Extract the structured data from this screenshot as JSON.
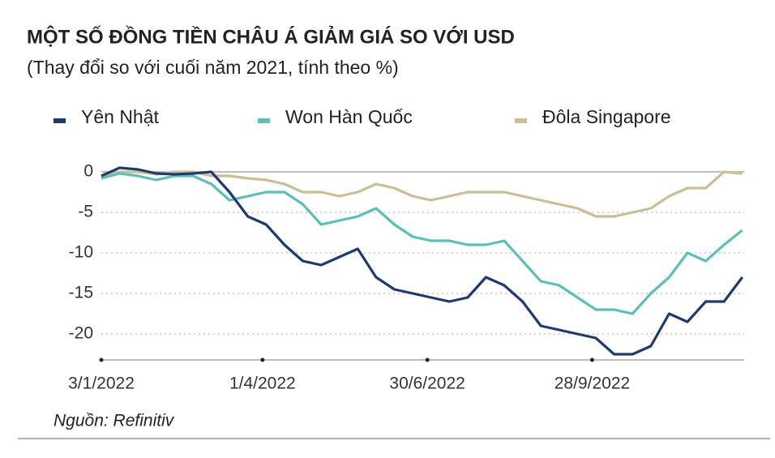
{
  "chart_data": {
    "type": "line",
    "title": "MỘT SỐ ĐỒNG TIỀN CHÂU Á GIẢM GIÁ SO VỚI USD",
    "subtitle": "(Thay đổi so với cuối năm 2021, tính theo %)",
    "source": "Nguồn: Refinitiv",
    "x": [
      "3/1/2022",
      "13/1/2022",
      "23/1/2022",
      "2/2/2022",
      "12/2/2022",
      "22/2/2022",
      "4/3/2022",
      "14/3/2022",
      "24/3/2022",
      "3/4/2022",
      "13/4/2022",
      "23/4/2022",
      "3/5/2022",
      "13/5/2022",
      "23/5/2022",
      "2/6/2022",
      "12/6/2022",
      "22/6/2022",
      "2/7/2022",
      "12/7/2022",
      "22/7/2022",
      "1/8/2022",
      "11/8/2022",
      "21/8/2022",
      "31/8/2022",
      "10/9/2022",
      "20/9/2022",
      "30/9/2022",
      "10/10/2022",
      "20/10/2022",
      "30/10/2022",
      "9/11/2022",
      "19/11/2022",
      "29/11/2022",
      "9/12/2022",
      "19/12/2022"
    ],
    "series": [
      {
        "name": "Yên Nhật",
        "color": "#1f3b6e",
        "values": [
          -0.5,
          0.5,
          0.3,
          -0.2,
          -0.3,
          -0.2,
          0,
          -2.5,
          -5.5,
          -6.5,
          -9,
          -11,
          -11.5,
          -10.5,
          -9.5,
          -13,
          -14.5,
          -15,
          -15.5,
          -16,
          -15.5,
          -13,
          -14,
          -16,
          -19,
          -19.5,
          -20,
          -20.5,
          -22.5,
          -22.5,
          -21.5,
          -17.5,
          -18.5,
          -16,
          -16,
          -13
        ]
      },
      {
        "name": "Won Hàn Quốc",
        "color": "#5bc0b8",
        "values": [
          -0.8,
          -0.2,
          -0.5,
          -1,
          -0.5,
          -0.5,
          -1.5,
          -3.5,
          -3,
          -2.5,
          -2.5,
          -4,
          -6.5,
          -6,
          -5.5,
          -4.5,
          -6.5,
          -8,
          -8.5,
          -8.5,
          -9,
          -9,
          -8.5,
          -11,
          -13.5,
          -14,
          -15.5,
          -17,
          -17,
          -17.5,
          -15,
          -13,
          -10,
          -11,
          -9,
          -7.2
        ]
      },
      {
        "name": "Đôla Singapore",
        "color": "#c8bf94",
        "values": [
          -0.5,
          0,
          0,
          -0.3,
          0,
          0,
          -0.5,
          -0.5,
          -0.8,
          -1,
          -1.5,
          -2.5,
          -2.5,
          -3,
          -2.5,
          -1.5,
          -2,
          -3,
          -3.5,
          -3,
          -2.5,
          -2.5,
          -2.5,
          -3,
          -3.5,
          -4,
          -4.5,
          -5.5,
          -5.5,
          -5,
          -4.5,
          -3,
          -2,
          -2,
          0,
          -0.2
        ]
      }
    ],
    "xlim": [
      "3/1/2022",
      "20/12/2022"
    ],
    "xticks": [
      "3/1/2022",
      "1/4/2022",
      "30/6/2022",
      "28/9/2022"
    ],
    "ylim": [
      -23.2,
      1.2
    ],
    "yticks": [
      0,
      -5,
      -10,
      -15,
      -20
    ],
    "grid": true,
    "legend": "top"
  }
}
